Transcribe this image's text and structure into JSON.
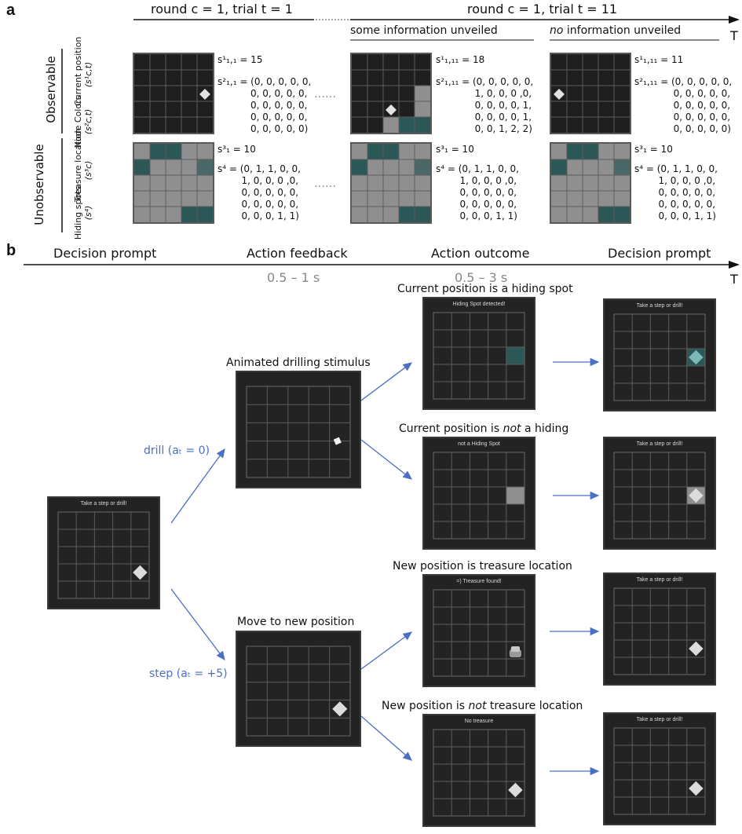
{
  "panel_a": {
    "letter": "a",
    "timeline": {
      "left": "round c = 1, trial t = 1",
      "right": "round c = 1, trial t = 11",
      "t_label": "T"
    },
    "sub_left": "some information unveiled",
    "sub_right_italic": "no",
    "sub_right_rest": " information unveiled",
    "group_observable": "Observable",
    "group_unobservable": "Unobservable",
    "rows": [
      {
        "name": "Current position",
        "symbol": "(s¹c,t)"
      },
      {
        "name": "Node Colors",
        "symbol": "(s²c,t)"
      },
      {
        "name": "Treasure location",
        "symbol": "(s³c)"
      },
      {
        "name": "Hiding spots",
        "symbol": "(s⁴)"
      }
    ],
    "ellipsis": "……",
    "columns": [
      {
        "s1": "s¹₁,₁ = 15",
        "s2": "s²₁,₁ = (0, 0, 0, 0, 0,\n           0, 0, 0, 0, 0,\n           0, 0, 0, 0, 0,\n           0, 0, 0, 0, 0,\n           0, 0, 0, 0, 0)",
        "s3": "s³₁ = 10",
        "s4": "s⁴ = (0, 1, 1, 0, 0,\n        1, 0, 0, 0 ,0,\n        0, 0, 0, 0, 0,\n        0, 0, 0, 0, 0,\n        0, 0, 0, 1, 1)"
      },
      {
        "s1": "s¹₁,₁₁ = 18",
        "s2": "s²₁,₁₁ = (0, 0, 0, 0, 0,\n             1, 0, 0, 0 ,0,\n             0, 0, 0, 0, 1,\n             0, 0, 0, 0, 1,\n             0, 0, 1, 2, 2)",
        "s3": "s³₁ = 10",
        "s4": "s⁴ = (0, 1, 1, 0, 0,\n        1, 0, 0, 0 ,0,\n        0, 0, 0, 0, 0,\n        0, 0, 0, 0, 0,\n        0, 0, 0, 1, 1)"
      },
      {
        "s1": "s¹₁,₁₁ = 11",
        "s2": "s²₁,₁₁ = (0, 0, 0, 0, 0,\n             0, 0, 0, 0, 0,\n             0, 0, 0, 0, 0,\n             0, 0, 0, 0, 0,\n             0, 0, 0, 0, 0)",
        "s3": "s³₁ = 10",
        "s4": "s⁴ = (0, 1, 1, 0, 0,\n        1, 0, 0, 0 ,0,\n        0, 0, 0, 0, 0,\n        0, 0, 0, 0, 0,\n        0, 0, 0, 1, 1)"
      }
    ]
  },
  "panel_b": {
    "letter": "b",
    "stages": [
      "Decision prompt",
      "Action feedback",
      "Action outcome",
      "Decision prompt"
    ],
    "durations": [
      "0.5 – 1 s",
      "0.5 – 3 s"
    ],
    "t_label": "T",
    "drill_label": "drill (aₜ = 0)",
    "step_label": "step (aₜ = +5)",
    "feedback_labels": [
      "Animated drilling stimulus",
      "Move to new position"
    ],
    "outcome_labels": [
      {
        "pre": "Current position is a hiding spot",
        "italic": "",
        "post": ""
      },
      {
        "pre": "Current position is ",
        "italic": "not",
        "post": " a hiding"
      },
      {
        "pre": "New position is treasure location",
        "italic": "",
        "post": ""
      },
      {
        "pre": "New position is ",
        "italic": "not",
        "post": " treasure location"
      }
    ],
    "screen_titles": {
      "prompt": "Take a step or drill!",
      "hiding": "Hiding Spot detected!",
      "not_hiding": "not a Hiding Spot",
      "treasure": "=) Treasure found!",
      "no_treasure": "No treasure"
    }
  },
  "colors": {
    "teal": "#2c5757",
    "grey_cell": "#8f8f8f",
    "arrow_blue": "#4a6fc4",
    "screen_bg": "#232323"
  }
}
